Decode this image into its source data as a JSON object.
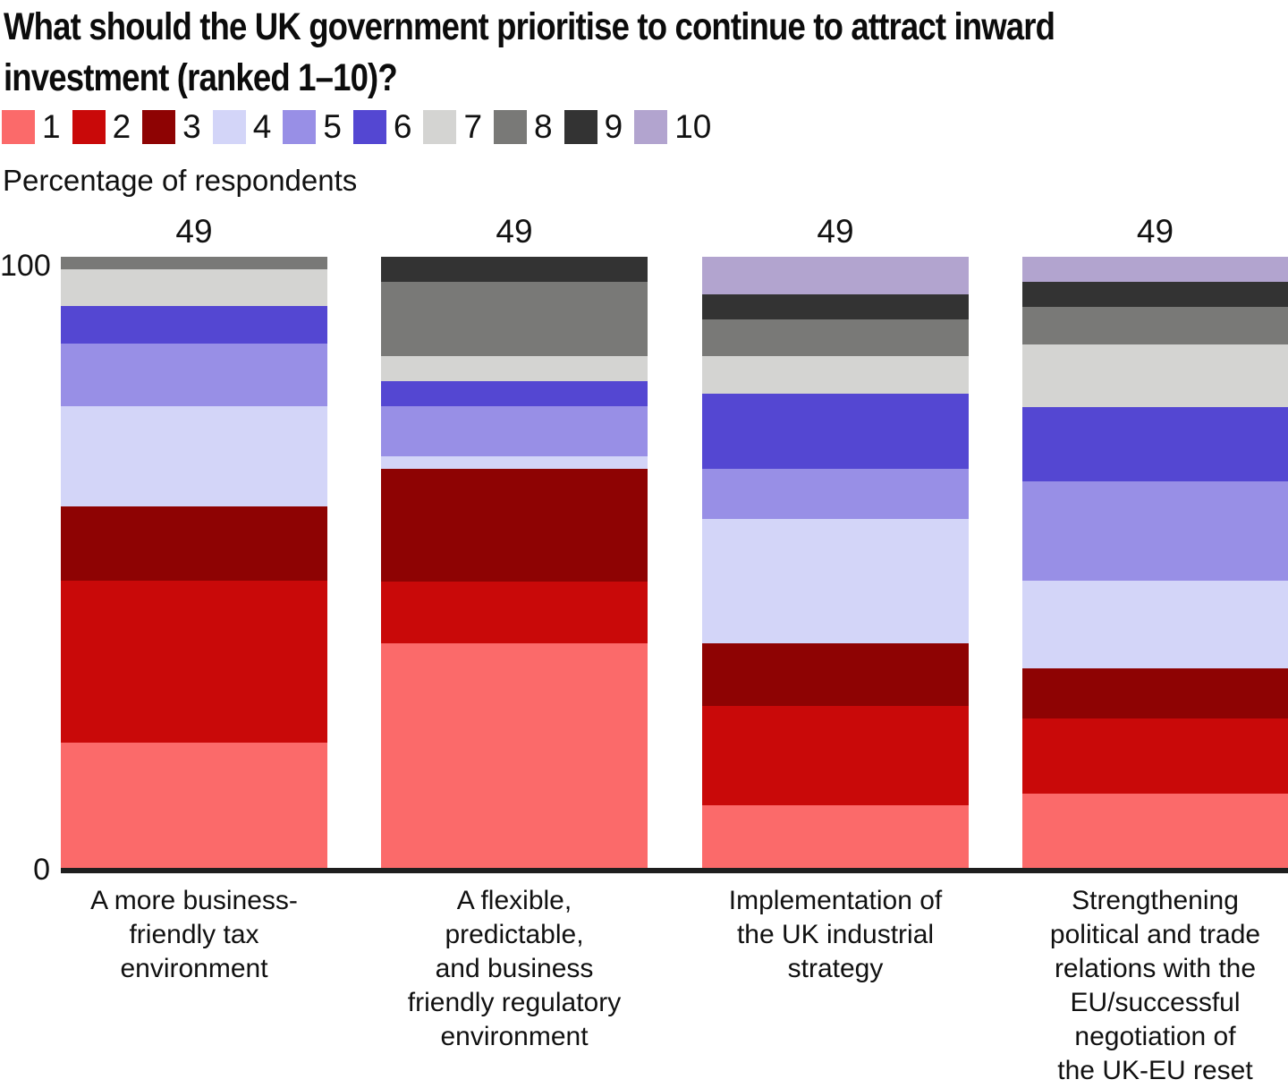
{
  "header": {
    "title": "What should the UK government prioritise to continue to attract inward\ninvestment (ranked 1–10)?"
  },
  "axis": {
    "y_title": "Percentage of respondents",
    "y_max_label": "100",
    "y_min_label": "0"
  },
  "chart_data": {
    "type": "bar",
    "stacked": true,
    "title": "What should the UK government prioritise to continue to attract inward investment (ranked 1–10)?",
    "ylabel": "Percentage of respondents",
    "ylim": [
      0,
      100
    ],
    "grid": false,
    "legend_position": "top",
    "bar_totals": [
      "49",
      "49",
      "49",
      "49"
    ],
    "categories": [
      "A more business-\nfriendly tax\nenvironment",
      "A flexible,\npredictable,\nand business\nfriendly regulatory\nenvironment",
      "Implementation of\nthe UK industrial\nstrategy",
      "Strengthening\npolitical and trade\nrelations with the\nEU/successful\nnegotiation of\nthe UK-EU reset"
    ],
    "series": [
      {
        "name": "1",
        "color": "#FB6A6A",
        "values": [
          20.4,
          36.7,
          10.2,
          12.2
        ]
      },
      {
        "name": "2",
        "color": "#C90909",
        "values": [
          26.5,
          10.2,
          16.3,
          12.2
        ]
      },
      {
        "name": "3",
        "color": "#8E0303",
        "values": [
          12.2,
          18.4,
          10.2,
          8.2
        ]
      },
      {
        "name": "4",
        "color": "#D3D5F8",
        "values": [
          16.3,
          2.0,
          20.4,
          14.3
        ]
      },
      {
        "name": "5",
        "color": "#988FE6",
        "values": [
          10.2,
          8.2,
          8.2,
          16.3
        ]
      },
      {
        "name": "6",
        "color": "#5447D2",
        "values": [
          6.1,
          4.1,
          12.2,
          12.2
        ]
      },
      {
        "name": "7",
        "color": "#D4D4D2",
        "values": [
          6.1,
          4.1,
          6.1,
          10.2
        ]
      },
      {
        "name": "8",
        "color": "#797977",
        "values": [
          2.0,
          12.2,
          6.1,
          6.1
        ]
      },
      {
        "name": "9",
        "color": "#333333",
        "values": [
          0.0,
          4.1,
          4.1,
          4.1
        ]
      },
      {
        "name": "10",
        "color": "#B2A4CF",
        "values": [
          0.0,
          0.0,
          6.1,
          4.1
        ]
      }
    ]
  }
}
